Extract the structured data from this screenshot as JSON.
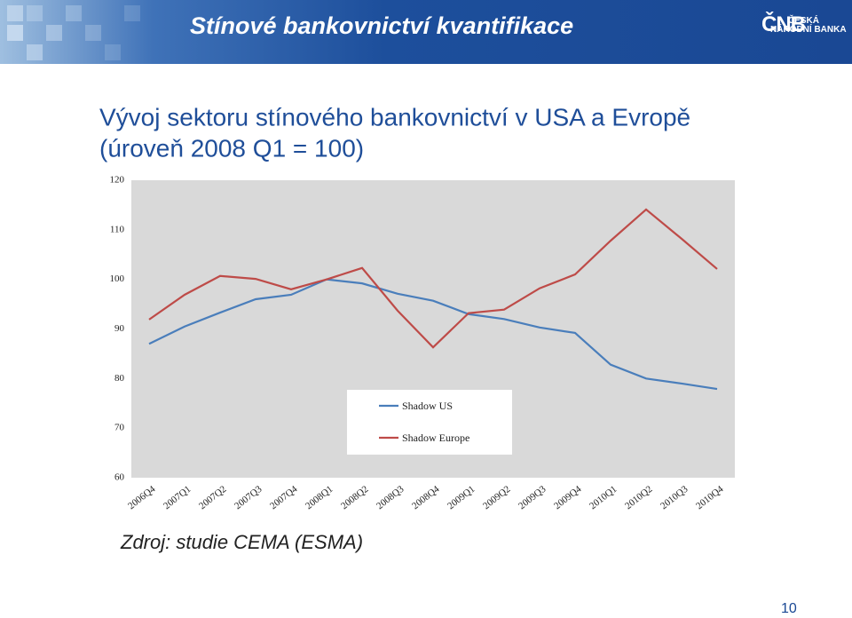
{
  "slide": {
    "title": "Stínové bankovnictví kvantifikace",
    "logo_mark": "ČNB",
    "logo_line1": "ČESKÁ",
    "logo_line2": "NÁRODNÍ BANKA",
    "source": "Zdroj: studie CEMA (ESMA)",
    "page_number": "10"
  },
  "chart_data": {
    "type": "line",
    "title": "Vývoj sektoru stínového bankovnictví v USA a Evropě",
    "subtitle": "(úroveň 2008 Q1 = 100)",
    "categories": [
      "2006Q4",
      "2007Q1",
      "2007Q2",
      "2007Q3",
      "2007Q4",
      "2008Q1",
      "2008Q2",
      "2008Q3",
      "2008Q4",
      "2009Q1",
      "2009Q2",
      "2009Q3",
      "2009Q4",
      "2010Q1",
      "2010Q2",
      "2010Q3",
      "2010Q4"
    ],
    "series": [
      {
        "name": "Shadow US",
        "color": "#4a7ebb",
        "values": [
          87,
          90.5,
          93.3,
          96,
          96.9,
          100,
          99.2,
          97.1,
          95.7,
          93,
          92,
          90.3,
          89.2,
          82.8,
          80,
          79,
          77.9
        ]
      },
      {
        "name": "Shadow Europe",
        "color": "#be4b48",
        "values": [
          91.9,
          96.9,
          100.7,
          100.1,
          98,
          100,
          102.3,
          93.7,
          86.3,
          93.2,
          93.9,
          98.2,
          101,
          107.8,
          114.1,
          108.2,
          102.1
        ]
      }
    ],
    "ylim": [
      60,
      120
    ],
    "yticks": [
      60,
      70,
      80,
      90,
      100,
      110,
      120
    ],
    "grid": false,
    "plot_background": "#d9d9d9",
    "legend": "lower center"
  }
}
